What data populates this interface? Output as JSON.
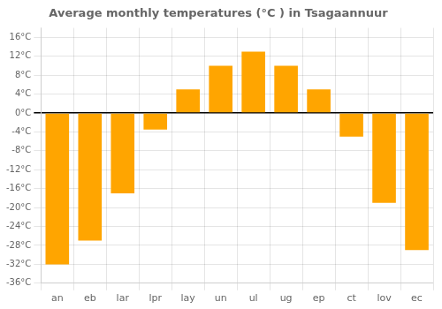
{
  "chart_data": {
    "type": "bar",
    "title": "Average monthly temperatures (°C ) in Tsagaannuur",
    "categories": [
      "an",
      "eb",
      "lar",
      "lpr",
      "lay",
      "un",
      "ul",
      "ug",
      "ep",
      "ct",
      "lov",
      "ec"
    ],
    "values": [
      -32,
      -27,
      -17,
      -3.5,
      5,
      10,
      13,
      10,
      5,
      -5,
      -19,
      -29
    ],
    "color": "#FFA500",
    "ylim": [
      -36,
      18
    ],
    "yticks": [
      {
        "value": -36,
        "label": "-36°C"
      },
      {
        "value": -32,
        "label": "-32°C"
      },
      {
        "value": -28,
        "label": "-28°C"
      },
      {
        "value": -24,
        "label": "-24°C"
      },
      {
        "value": -20,
        "label": "-20°C"
      },
      {
        "value": -16,
        "label": "-16°C"
      },
      {
        "value": -12,
        "label": "-12°C"
      },
      {
        "value": -8,
        "label": "-8°C"
      },
      {
        "value": -4,
        "label": "-4°C"
      },
      {
        "value": 0,
        "label": "0°C"
      },
      {
        "value": 4,
        "label": "4°C"
      },
      {
        "value": 8,
        "label": "8°C"
      },
      {
        "value": 12,
        "label": "12°C"
      },
      {
        "value": 16,
        "label": "16°C"
      }
    ],
    "grid": true
  }
}
